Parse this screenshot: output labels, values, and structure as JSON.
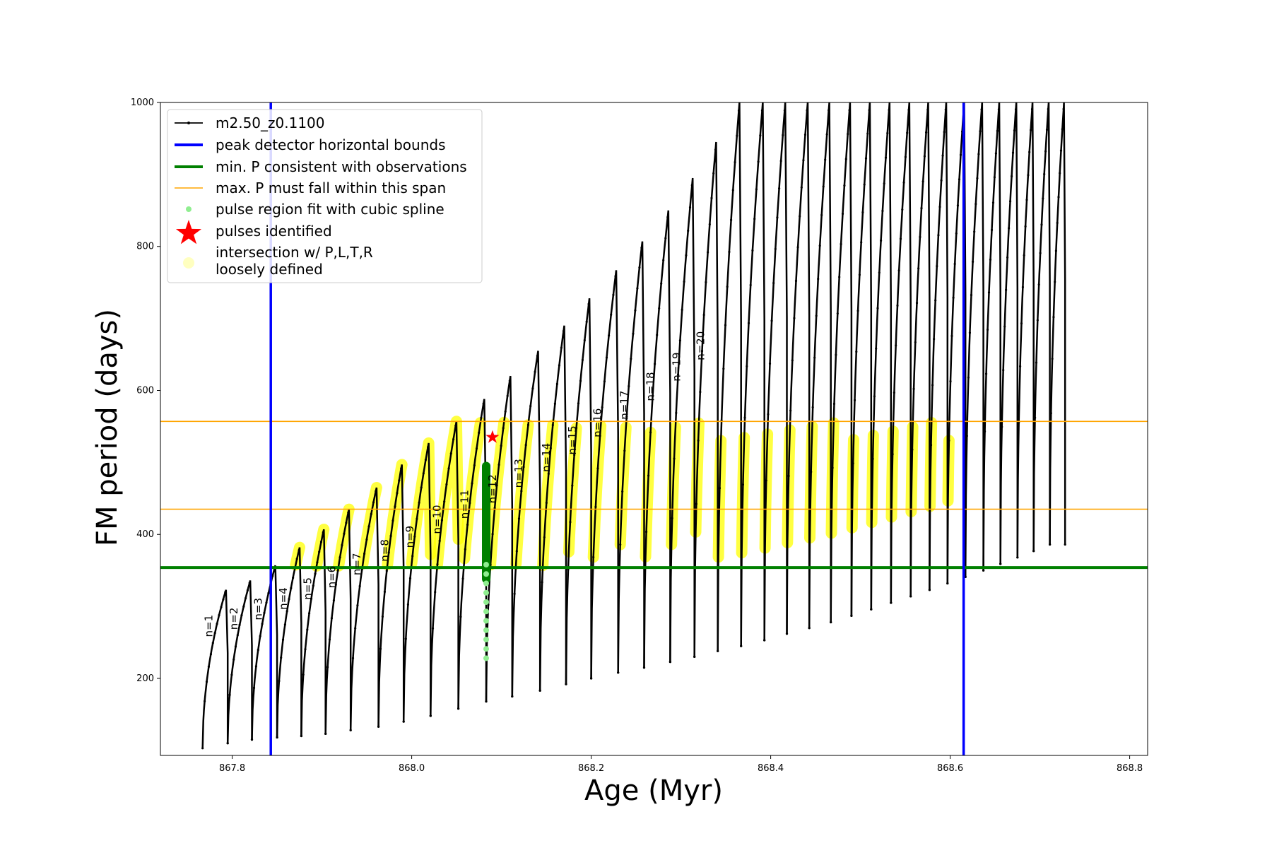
{
  "chart_data": {
    "type": "line",
    "xlabel": "Age (Myr)",
    "ylabel": "FM period (days)",
    "xlim": [
      867.72,
      868.82
    ],
    "ylim": [
      93,
      1000
    ],
    "xticks": [
      867.8,
      868.0,
      868.2,
      868.4,
      868.6,
      868.8
    ],
    "xtick_labels": [
      "867.8",
      "868.0",
      "868.2",
      "868.4",
      "868.6",
      "868.8"
    ],
    "yticks": [
      200,
      400,
      600,
      800,
      1000
    ],
    "ytick_labels": [
      "200",
      "400",
      "600",
      "800",
      "1000"
    ],
    "legend_position": "top-left",
    "colors": {
      "model": "#000000",
      "peak_bounds": "#0000ff",
      "min_period": "#008000",
      "max_period_span": "#ffa500",
      "spline_fit": "#90ee90",
      "pulses": "#ff0000",
      "intersection": "#ffff00",
      "loose": "#ffffc0"
    },
    "legend": [
      {
        "key": "model",
        "label": "m2.50_z0.1100"
      },
      {
        "key": "peak_bounds",
        "label": "peak detector horizontal bounds"
      },
      {
        "key": "min_period",
        "label": "min. P consistent with observations"
      },
      {
        "key": "max_period_span",
        "label": "max. P must fall within this span"
      },
      {
        "key": "spline_fit",
        "label": "pulse region fit with cubic spline"
      },
      {
        "key": "pulses",
        "label": "pulses identified"
      },
      {
        "key": "intersection",
        "label": "intersection w/ P,L,T,R"
      },
      {
        "key": "loose",
        "label": "loosely defined"
      }
    ],
    "peak_detector_bounds": [
      867.843,
      868.615
    ],
    "min_period_line": 354,
    "max_period_span": [
      435,
      557
    ],
    "pulse_region_spline": {
      "x": 868.083,
      "y": [
        228,
        500
      ]
    },
    "pulse_identified": {
      "x": 868.09,
      "y": 535
    },
    "pulses": [
      {
        "label": "n=1",
        "t_start": 867.767,
        "t_end": 867.795,
        "p_min": 103,
        "p_peak": 323
      },
      {
        "label": "n=2",
        "t_start": 867.795,
        "t_end": 867.822,
        "p_min": 110,
        "p_peak": 336
      },
      {
        "label": "n=3",
        "t_start": 867.822,
        "t_end": 867.85,
        "p_min": 115,
        "p_peak": 357
      },
      {
        "label": "n=4",
        "t_start": 867.85,
        "t_end": 867.877,
        "p_min": 118,
        "p_peak": 382
      },
      {
        "label": "n=5",
        "t_start": 867.877,
        "t_end": 867.904,
        "p_min": 120,
        "p_peak": 407
      },
      {
        "label": "n=6",
        "t_start": 867.904,
        "t_end": 867.932,
        "p_min": 123,
        "p_peak": 435
      },
      {
        "label": "n=7",
        "t_start": 867.932,
        "t_end": 867.963,
        "p_min": 128,
        "p_peak": 465
      },
      {
        "label": "n=8",
        "t_start": 867.963,
        "t_end": 867.991,
        "p_min": 133,
        "p_peak": 497
      },
      {
        "label": "n=9",
        "t_start": 867.991,
        "t_end": 868.021,
        "p_min": 140,
        "p_peak": 527
      },
      {
        "label": "n=10",
        "t_start": 868.021,
        "t_end": 868.052,
        "p_min": 148,
        "p_peak": 557
      },
      {
        "label": "n=11",
        "t_start": 868.052,
        "t_end": 868.083,
        "p_min": 158,
        "p_peak": 588
      },
      {
        "label": "n=12",
        "t_start": 868.083,
        "t_end": 868.112,
        "p_min": 168,
        "p_peak": 620
      },
      {
        "label": "n=13",
        "t_start": 868.112,
        "t_end": 868.143,
        "p_min": 175,
        "p_peak": 655
      },
      {
        "label": "n=14",
        "t_start": 868.143,
        "t_end": 868.172,
        "p_min": 183,
        "p_peak": 690
      },
      {
        "label": "n=15",
        "t_start": 868.172,
        "t_end": 868.2,
        "p_min": 192,
        "p_peak": 728
      },
      {
        "label": "n=16",
        "t_start": 868.2,
        "t_end": 868.23,
        "p_min": 200,
        "p_peak": 767
      },
      {
        "label": "n=17",
        "t_start": 868.23,
        "t_end": 868.259,
        "p_min": 208,
        "p_peak": 807
      },
      {
        "label": "n=18",
        "t_start": 868.259,
        "t_end": 868.288,
        "p_min": 215,
        "p_peak": 850
      },
      {
        "label": "n=19",
        "t_start": 868.288,
        "t_end": 868.315,
        "p_min": 223,
        "p_peak": 895
      },
      {
        "label": "n=20",
        "t_start": 868.315,
        "t_end": 868.341,
        "p_min": 230,
        "p_peak": 945
      },
      {
        "label": "",
        "t_start": 868.341,
        "t_end": 868.367,
        "p_min": 238,
        "p_peak": 1000
      },
      {
        "label": "",
        "t_start": 868.367,
        "t_end": 868.393,
        "p_min": 245,
        "p_peak": 1000
      },
      {
        "label": "",
        "t_start": 868.393,
        "t_end": 868.418,
        "p_min": 253,
        "p_peak": 1000
      },
      {
        "label": "",
        "t_start": 868.418,
        "t_end": 868.443,
        "p_min": 262,
        "p_peak": 1000
      },
      {
        "label": "",
        "t_start": 868.443,
        "t_end": 868.467,
        "p_min": 270,
        "p_peak": 1000
      },
      {
        "label": "",
        "t_start": 868.467,
        "t_end": 868.49,
        "p_min": 278,
        "p_peak": 1000
      },
      {
        "label": "",
        "t_start": 868.49,
        "t_end": 868.512,
        "p_min": 287,
        "p_peak": 1000
      },
      {
        "label": "",
        "t_start": 868.512,
        "t_end": 868.534,
        "p_min": 296,
        "p_peak": 1000
      },
      {
        "label": "",
        "t_start": 868.534,
        "t_end": 868.556,
        "p_min": 305,
        "p_peak": 1000
      },
      {
        "label": "",
        "t_start": 868.556,
        "t_end": 868.577,
        "p_min": 314,
        "p_peak": 1000
      },
      {
        "label": "",
        "t_start": 868.577,
        "t_end": 868.597,
        "p_min": 323,
        "p_peak": 1000
      },
      {
        "label": "",
        "t_start": 868.597,
        "t_end": 868.617,
        "p_min": 332,
        "p_peak": 1000
      },
      {
        "label": "",
        "t_start": 868.617,
        "t_end": 868.637,
        "p_min": 341,
        "p_peak": 1000
      },
      {
        "label": "",
        "t_start": 868.637,
        "t_end": 868.656,
        "p_min": 350,
        "p_peak": 1000
      },
      {
        "label": "",
        "t_start": 868.656,
        "t_end": 868.675,
        "p_min": 359,
        "p_peak": 1000
      },
      {
        "label": "",
        "t_start": 868.675,
        "t_end": 868.693,
        "p_min": 368,
        "p_peak": 1000
      },
      {
        "label": "",
        "t_start": 868.693,
        "t_end": 868.711,
        "p_min": 377,
        "p_peak": 1000
      },
      {
        "label": "",
        "t_start": 868.711,
        "t_end": 868.728,
        "p_min": 386,
        "p_peak": 1000
      }
    ]
  }
}
